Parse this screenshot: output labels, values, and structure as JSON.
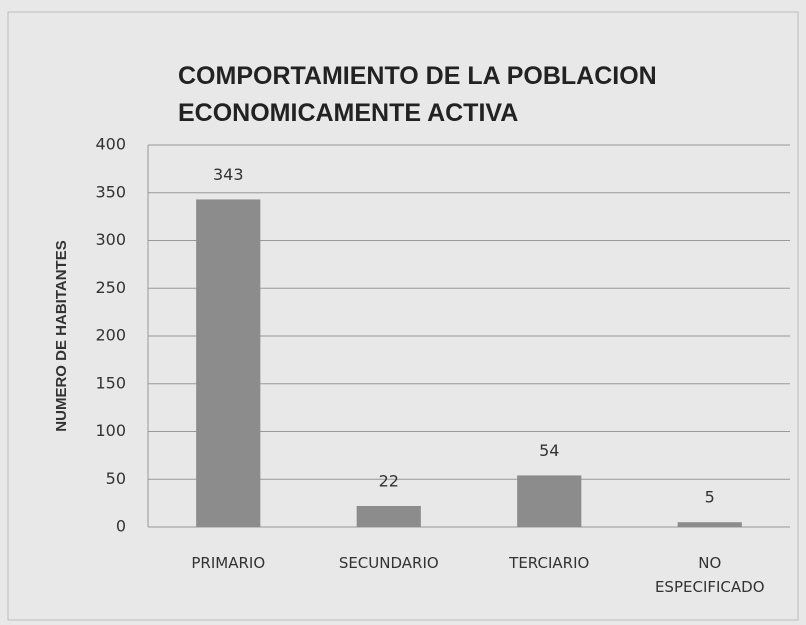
{
  "chart_data": {
    "type": "bar",
    "title": "COMPORTAMIENTO DE LA POBLACION ECONOMICAMENTE ACTIVA",
    "y_label": "NUMERO DE HABITANTES",
    "categories": [
      "PRIMARIO",
      "SECUNDARIO",
      "TERCIARIO",
      "NO ESPECIFICADO"
    ],
    "values": [
      343,
      22,
      54,
      5
    ],
    "color": "#8c8c8c",
    "ylim": [
      0,
      400
    ],
    "yticks": [
      0,
      50,
      100,
      150,
      200,
      250,
      300,
      350,
      400
    ],
    "grid": true
  }
}
